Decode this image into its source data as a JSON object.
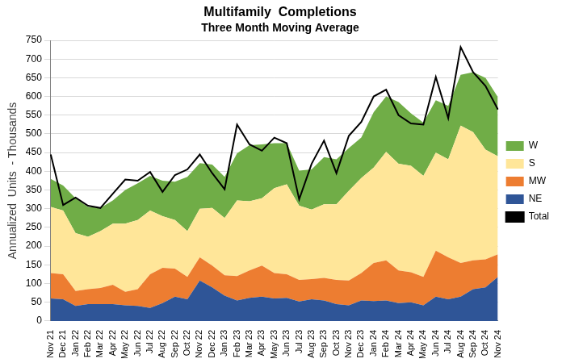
{
  "chart_data": {
    "type": "area",
    "title": "Multifamily  Completions",
    "subtitle": "Three Month Moving Average",
    "y_label": "Annualized  Units  - Thousands",
    "categories": [
      "Nov 21",
      "Dec 21",
      "Jan 22",
      "Feb 22",
      "Mar 22",
      "Apr 22",
      "May 22",
      "Jun 22",
      "Jul 22",
      "Aug 22",
      "Sep 22",
      "Oct 22",
      "Nov 22",
      "Dec 22",
      "Jan 23",
      "Feb 23",
      "Mar 23",
      "Apr 23",
      "May 23",
      "Jun 23",
      "Jul 23",
      "Aug 23",
      "Sep 23",
      "Oct 23",
      "Nov 23",
      "Dec 23",
      "Jan 24",
      "Feb 24",
      "Mar 24",
      "Apr 24",
      "May 24",
      "Jun 24",
      "Jul 24",
      "Aug 24",
      "Sep 24",
      "Oct 24",
      "Nov 24"
    ],
    "series": [
      {
        "name": "W",
        "type": "area",
        "color": "#70ad47",
        "values": [
          75,
          67,
          93,
          80,
          62,
          62,
          90,
          98,
          93,
          95,
          102,
          145,
          122,
          116,
          110,
          126,
          150,
          144,
          120,
          110,
          94,
          107,
          126,
          120,
          114,
          108,
          148,
          148,
          165,
          140,
          142,
          140,
          143,
          136,
          160,
          192,
          158
        ]
      },
      {
        "name": "S",
        "type": "area",
        "color": "#ffe699",
        "values": [
          177,
          170,
          155,
          140,
          152,
          163,
          182,
          185,
          170,
          138,
          130,
          122,
          130,
          154,
          153,
          202,
          185,
          180,
          227,
          240,
          198,
          186,
          197,
          202,
          240,
          254,
          255,
          290,
          285,
          285,
          270,
          262,
          262,
          367,
          343,
          293,
          262
        ]
      },
      {
        "name": "MW",
        "type": "area",
        "color": "#ed7d31",
        "values": [
          68,
          67,
          40,
          40,
          43,
          52,
          36,
          45,
          90,
          94,
          75,
          60,
          62,
          58,
          54,
          65,
          73,
          83,
          68,
          63,
          58,
          54,
          60,
          65,
          66,
          73,
          102,
          107,
          87,
          80,
          76,
          123,
          112,
          90,
          77,
          75,
          60
        ]
      },
      {
        "name": "NE",
        "type": "area",
        "color": "#2f5597",
        "values": [
          60,
          58,
          40,
          45,
          45,
          45,
          42,
          40,
          35,
          48,
          65,
          58,
          108,
          90,
          68,
          55,
          62,
          65,
          60,
          62,
          52,
          58,
          55,
          45,
          42,
          55,
          53,
          55,
          48,
          50,
          42,
          65,
          58,
          65,
          85,
          90,
          118
        ]
      },
      {
        "name": "Total",
        "type": "line",
        "color": "#000000",
        "values": [
          445,
          310,
          330,
          308,
          302,
          340,
          378,
          375,
          398,
          345,
          390,
          405,
          445,
          395,
          352,
          525,
          472,
          455,
          490,
          475,
          325,
          420,
          482,
          395,
          495,
          532,
          600,
          618,
          550,
          528,
          525,
          652,
          542,
          732,
          665,
          628,
          565
        ]
      }
    ],
    "ylim": [
      0,
      750
    ],
    "yticks": [
      0,
      50,
      100,
      150,
      200,
      250,
      300,
      350,
      400,
      450,
      500,
      550,
      600,
      650,
      700,
      750
    ],
    "stacked": true,
    "grid": true,
    "legend": "right"
  }
}
